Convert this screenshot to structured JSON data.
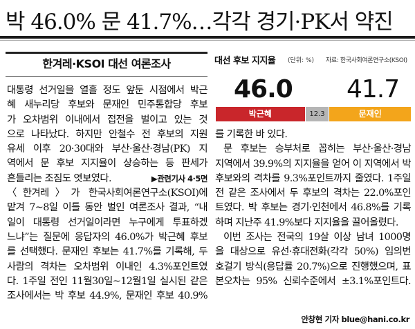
{
  "headline": "박 46.0% 문 41.7%…각각 경기·PK서 약진",
  "subhead": "한겨레·KSOI 대선 여론조사",
  "left_column": [
    "대통령 선거일을 열흘 정도 앞둔 시점에서 박근",
    "혜 새누리당 후보와 문재인 민주통합당 후보",
    "가 오차범위 이내에서 접전을 벌이고 있는 것",
    "으로 나타났다. 하지만 안철수 전 후보의 지원",
    "유세 이후 20·30대와 부산·울산·경남(PK) 지",
    "역에서 문 후보 지지율이 상승하는 등 판세가",
    "흔들리는 조짐도 엿보였다.",
    "〈한겨레〉가 한국사회여론연구소(KSOI)에",
    "맡겨 7~8일 이틀 동안 벌인 여론조사 결과, “내",
    "일이 대통령 선거일이라면 누구에게 투표하겠",
    "느냐”는 질문에 응답자의 46.0%가 박근혜 후보",
    "를 선택했다. 문재인 후보는 41.7%를 기록해, 두",
    "사람의 격차는 오차범위 이내인 4.3%포인트였",
    "다. 1주일 전인 11월30일~12월1일 실시된 같은",
    "조사에서는 박 후보 44.9%, 문재인 후보 40.9%"
  ],
  "related_ref": "▶관련기사 4·5면",
  "right_column": [
    "를 기록한 바 있다.",
    "문 후보는 승부처로 꼽히는 부산·울산·경남",
    "지역에서 39.9%의 지지율을 얻어 이 지역에서 박",
    "후보와의 격차를 9.3%포인트까지 줄였다. 1주일",
    "전 같은 조사에서 두 후보의 격차는 22.0%포인",
    "트였다. 박 후보는 경기·인천에서 46.8%를 기록",
    "하며 지난주 41.9%보다 지지율을 끌어올렸다.",
    "이번 조사는 전국의 19살 이상 남녀 1000명",
    "을 대상으로 유선·휴대전화(각각 50%) 임의번",
    "호걸기 방식(응답률 20.7%)으로 진행했으며, 표",
    "본오차는 95% 신뢰수준에서 ±3.1%포인트다."
  ],
  "byline": "안창현 기자 blue@hani.co.kr",
  "chart_data": {
    "type": "bar",
    "title": "대선 후보 지지율",
    "unit": "(단위: %)",
    "source": "자료: 한국사회여론연구소(KSOI)",
    "categories": [
      "박근혜",
      "",
      "문재인"
    ],
    "values": [
      46.0,
      12.3,
      41.7
    ],
    "value_labels": [
      "46.0",
      "12.3",
      "41.7"
    ],
    "colors": [
      "#c9262b",
      "#b5b5b5",
      "#f3a51b"
    ],
    "stacked": true
  }
}
